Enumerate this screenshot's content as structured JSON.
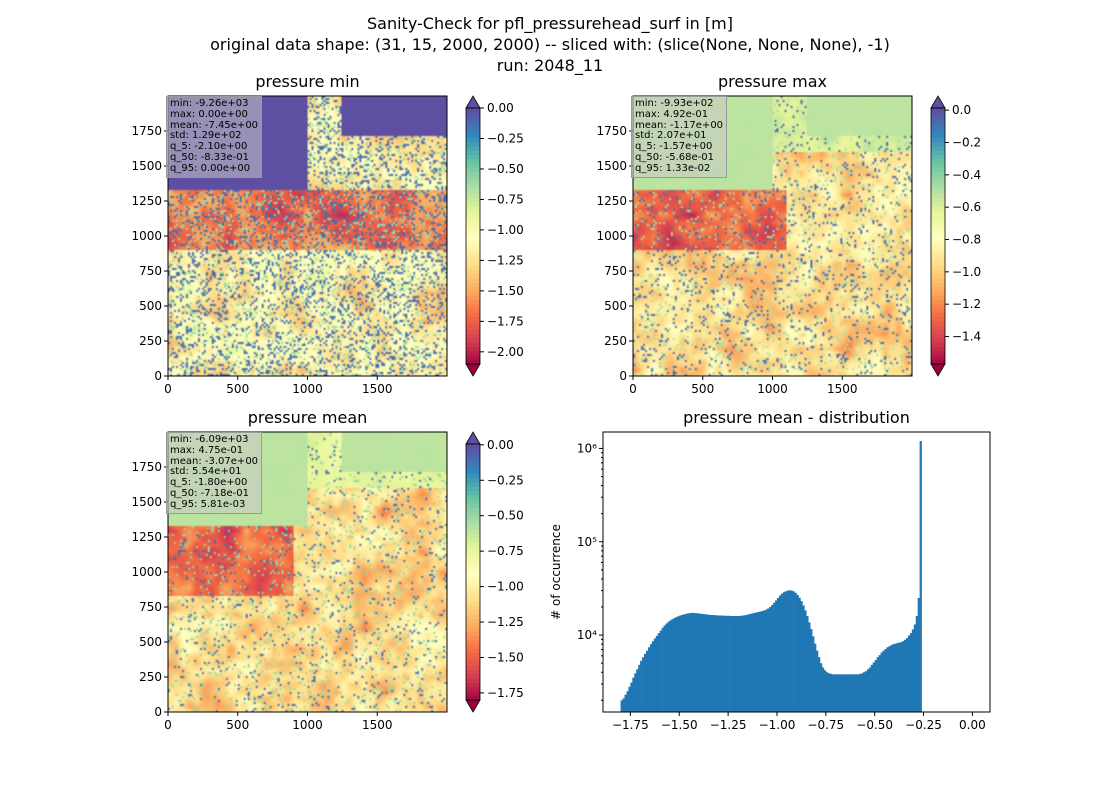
{
  "figure": {
    "title_lines": [
      "Sanity-Check for pfl_pressurehead_surf in [m]",
      "original data shape: (31, 15, 2000, 2000) -- sliced with: (slice(None, None, None), -1)",
      "run: 2048_11"
    ]
  },
  "panels": [
    {
      "title": "pressure min",
      "stats": [
        "min: -9.26e+03",
        "max: 0.00e+00",
        "mean: -7.45e+00",
        "std: 1.29e+02",
        "q_5: -2.10e+00",
        "q_50: -8.33e-01",
        "q_95: 0.00e+00"
      ],
      "colorbar": {
        "ticks": [
          0.0,
          -0.25,
          -0.5,
          -0.75,
          -1.0,
          -1.25,
          -1.5,
          -1.75,
          -2.0
        ],
        "tick_labels": [
          "0.00",
          "−0.25",
          "−0.50",
          "−0.75",
          "−1.00",
          "−1.25",
          "−1.50",
          "−1.75",
          "−2.00"
        ],
        "range": [
          -2.1,
          0.0
        ],
        "extend": "both"
      }
    },
    {
      "title": "pressure max",
      "stats": [
        "min: -9.93e+02",
        "max: 4.92e-01",
        "mean: -1.17e+00",
        "std: 2.07e+01",
        "q_5: -1.57e+00",
        "q_50: -5.68e-01",
        "q_95: 1.33e-02"
      ],
      "colorbar": {
        "ticks": [
          0.0,
          -0.2,
          -0.4,
          -0.6,
          -0.8,
          -1.0,
          -1.2,
          -1.4
        ],
        "tick_labels": [
          "0.0",
          "−0.2",
          "−0.4",
          "−0.6",
          "−0.8",
          "−1.0",
          "−1.2",
          "−1.4"
        ],
        "range": [
          -1.57,
          0.0133
        ],
        "extend": "both"
      }
    },
    {
      "title": "pressure mean",
      "stats": [
        "min: -6.09e+03",
        "max: 4.75e-01",
        "mean: -3.07e+00",
        "std: 5.54e+01",
        "q_5: -1.80e+00",
        "q_50: -7.18e-01",
        "q_95: 5.81e-03"
      ],
      "colorbar": {
        "ticks": [
          0.0,
          -0.25,
          -0.5,
          -0.75,
          -1.0,
          -1.25,
          -1.5,
          -1.75
        ],
        "tick_labels": [
          "0.00",
          "−0.25",
          "−0.50",
          "−0.75",
          "−1.00",
          "−1.25",
          "−1.50",
          "−1.75"
        ],
        "range": [
          -1.8,
          0.00581
        ],
        "extend": "both"
      }
    }
  ],
  "map_axes": {
    "x_ticks": [
      0,
      500,
      1000,
      1500
    ],
    "x_tick_labels": [
      "0",
      "500",
      "1000",
      "1500"
    ],
    "y_ticks": [
      0,
      250,
      500,
      750,
      1000,
      1250,
      1500,
      1750
    ],
    "y_tick_labels": [
      "0",
      "250",
      "500",
      "750",
      "1000",
      "1250",
      "1500",
      "1750"
    ],
    "xlim": [
      0,
      2000
    ],
    "ylim": [
      0,
      2000
    ]
  },
  "colormap": "Spectral",
  "histogram": {
    "title": "pressure mean - distribution",
    "ylabel": "# of occurrence",
    "bar_color": "#1f77b4"
  },
  "chart_data": {
    "type": "bar",
    "title": "pressure mean - distribution",
    "xlabel": "",
    "ylabel": "# of occurrence",
    "yscale": "log",
    "xlim": [
      -1.89,
      0.09
    ],
    "ylim": [
      1500,
      1500000
    ],
    "x_ticks": [
      -1.75,
      -1.5,
      -1.25,
      -1.0,
      -0.75,
      -0.5,
      -0.25,
      0.0
    ],
    "x_tick_labels": [
      "−1.75",
      "−1.50",
      "−1.25",
      "−1.00",
      "−0.75",
      "−0.50",
      "−0.25",
      "0.00"
    ],
    "y_ticks": [
      10000,
      100000,
      1000000
    ],
    "y_tick_labels": [
      "10⁴",
      "10⁵",
      "10⁶"
    ],
    "bin_start": -1.8,
    "bin_width": 0.01,
    "values": [
      2000,
      2100,
      2300,
      2500,
      2800,
      3100,
      3500,
      3900,
      4300,
      4800,
      5300,
      5800,
      6300,
      6800,
      7400,
      8000,
      8600,
      9200,
      9800,
      10500,
      11200,
      12000,
      12700,
      13300,
      13900,
      14400,
      14800,
      15200,
      15600,
      15900,
      16200,
      16500,
      16700,
      16900,
      17100,
      17200,
      17300,
      17300,
      17200,
      17100,
      17000,
      16900,
      16800,
      16700,
      16600,
      16500,
      16400,
      16400,
      16300,
      16300,
      16200,
      16200,
      16200,
      16100,
      16100,
      16100,
      16000,
      16000,
      16000,
      16000,
      16000,
      16100,
      16200,
      16300,
      16500,
      16700,
      16900,
      17100,
      17300,
      17500,
      17700,
      17900,
      18100,
      18400,
      18800,
      19300,
      20000,
      21000,
      22200,
      23500,
      25000,
      26500,
      27800,
      28800,
      29500,
      30000,
      30200,
      30000,
      29400,
      28400,
      27000,
      25200,
      23100,
      20800,
      18400,
      16000,
      13700,
      11600,
      9700,
      8100,
      6800,
      5800,
      5000,
      4500,
      4200,
      4000,
      3900,
      3850,
      3800,
      3800,
      3800,
      3800,
      3800,
      3800,
      3800,
      3800,
      3800,
      3800,
      3800,
      3800,
      3800,
      3800,
      3850,
      3900,
      4000,
      4100,
      4300,
      4500,
      4800,
      5100,
      5400,
      5800,
      6100,
      6500,
      6800,
      7100,
      7400,
      7600,
      7800,
      8000,
      8100,
      8200,
      8300,
      8400,
      8600,
      8900,
      9300,
      9900,
      10500,
      11500,
      13000,
      16000,
      25000,
      1200000
    ]
  }
}
